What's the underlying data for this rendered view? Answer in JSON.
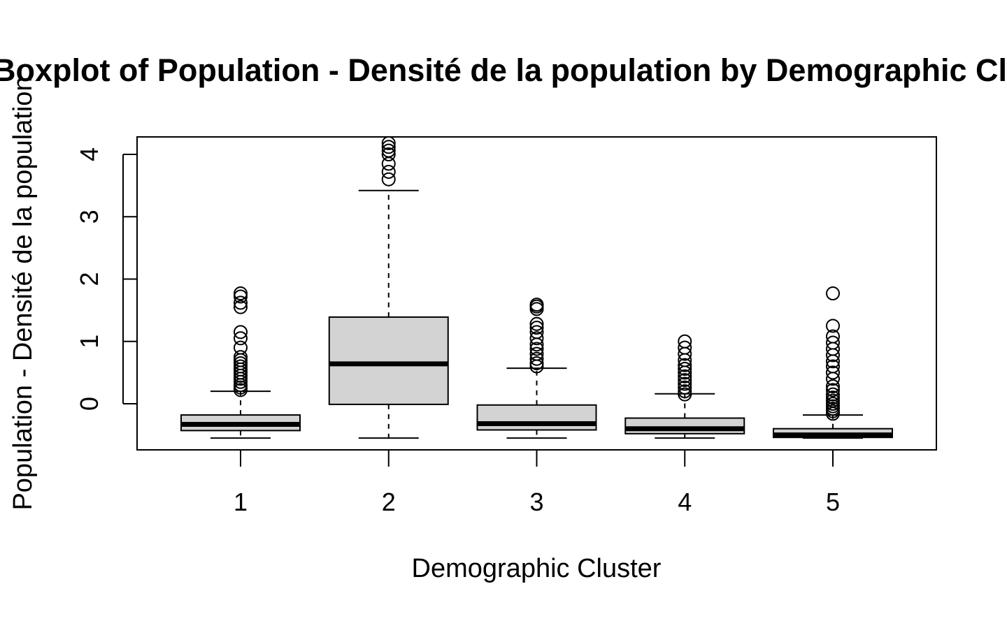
{
  "chart_data": {
    "type": "boxplot",
    "title": "Boxplot of Population - Densité de la population by Demographic Cluster",
    "xlabel": "Demographic Cluster",
    "ylabel": "Population - Densité de la population",
    "categories": [
      "1",
      "2",
      "3",
      "4",
      "5"
    ],
    "yticks": [
      0,
      1,
      2,
      3,
      4
    ],
    "ylim": [
      -0.74,
      4.28
    ],
    "grid": false,
    "box_fill": "#d3d3d3",
    "boxes": [
      {
        "category": "1",
        "whisker_low": -0.55,
        "q1": -0.43,
        "median": -0.33,
        "q3": -0.18,
        "whisker_high": 0.2,
        "outliers": [
          0.22,
          0.26,
          0.3,
          0.35,
          0.4,
          0.45,
          0.5,
          0.55,
          0.6,
          0.65,
          0.7,
          0.75,
          0.9,
          1.05,
          1.15,
          1.55,
          1.62,
          1.72,
          1.77
        ]
      },
      {
        "category": "2",
        "whisker_low": -0.55,
        "q1": -0.01,
        "median": 0.64,
        "q3": 1.39,
        "whisker_high": 3.42,
        "outliers": [
          3.6,
          3.72,
          3.85,
          4.0,
          4.06,
          4.12,
          4.18
        ]
      },
      {
        "category": "3",
        "whisker_low": -0.55,
        "q1": -0.42,
        "median": -0.32,
        "q3": -0.02,
        "whisker_high": 0.57,
        "outliers": [
          0.6,
          0.65,
          0.72,
          0.8,
          0.88,
          0.95,
          1.05,
          1.15,
          1.22,
          1.28,
          1.52,
          1.56,
          1.59
        ]
      },
      {
        "category": "4",
        "whisker_low": -0.55,
        "q1": -0.48,
        "median": -0.4,
        "q3": -0.23,
        "whisker_high": 0.16,
        "outliers": [
          0.15,
          0.2,
          0.26,
          0.32,
          0.38,
          0.44,
          0.5,
          0.56,
          0.62,
          0.7,
          0.8,
          0.9,
          1.0
        ]
      },
      {
        "category": "5",
        "whisker_low": -0.55,
        "q1": -0.54,
        "median": -0.5,
        "q3": -0.4,
        "whisker_high": -0.18,
        "outliers": [
          -0.16,
          -0.12,
          -0.08,
          -0.04,
          0.0,
          0.05,
          0.1,
          0.15,
          0.22,
          0.28,
          0.4,
          0.5,
          0.6,
          0.68,
          0.78,
          0.88,
          0.98,
          1.08,
          1.25,
          1.77
        ]
      }
    ]
  }
}
